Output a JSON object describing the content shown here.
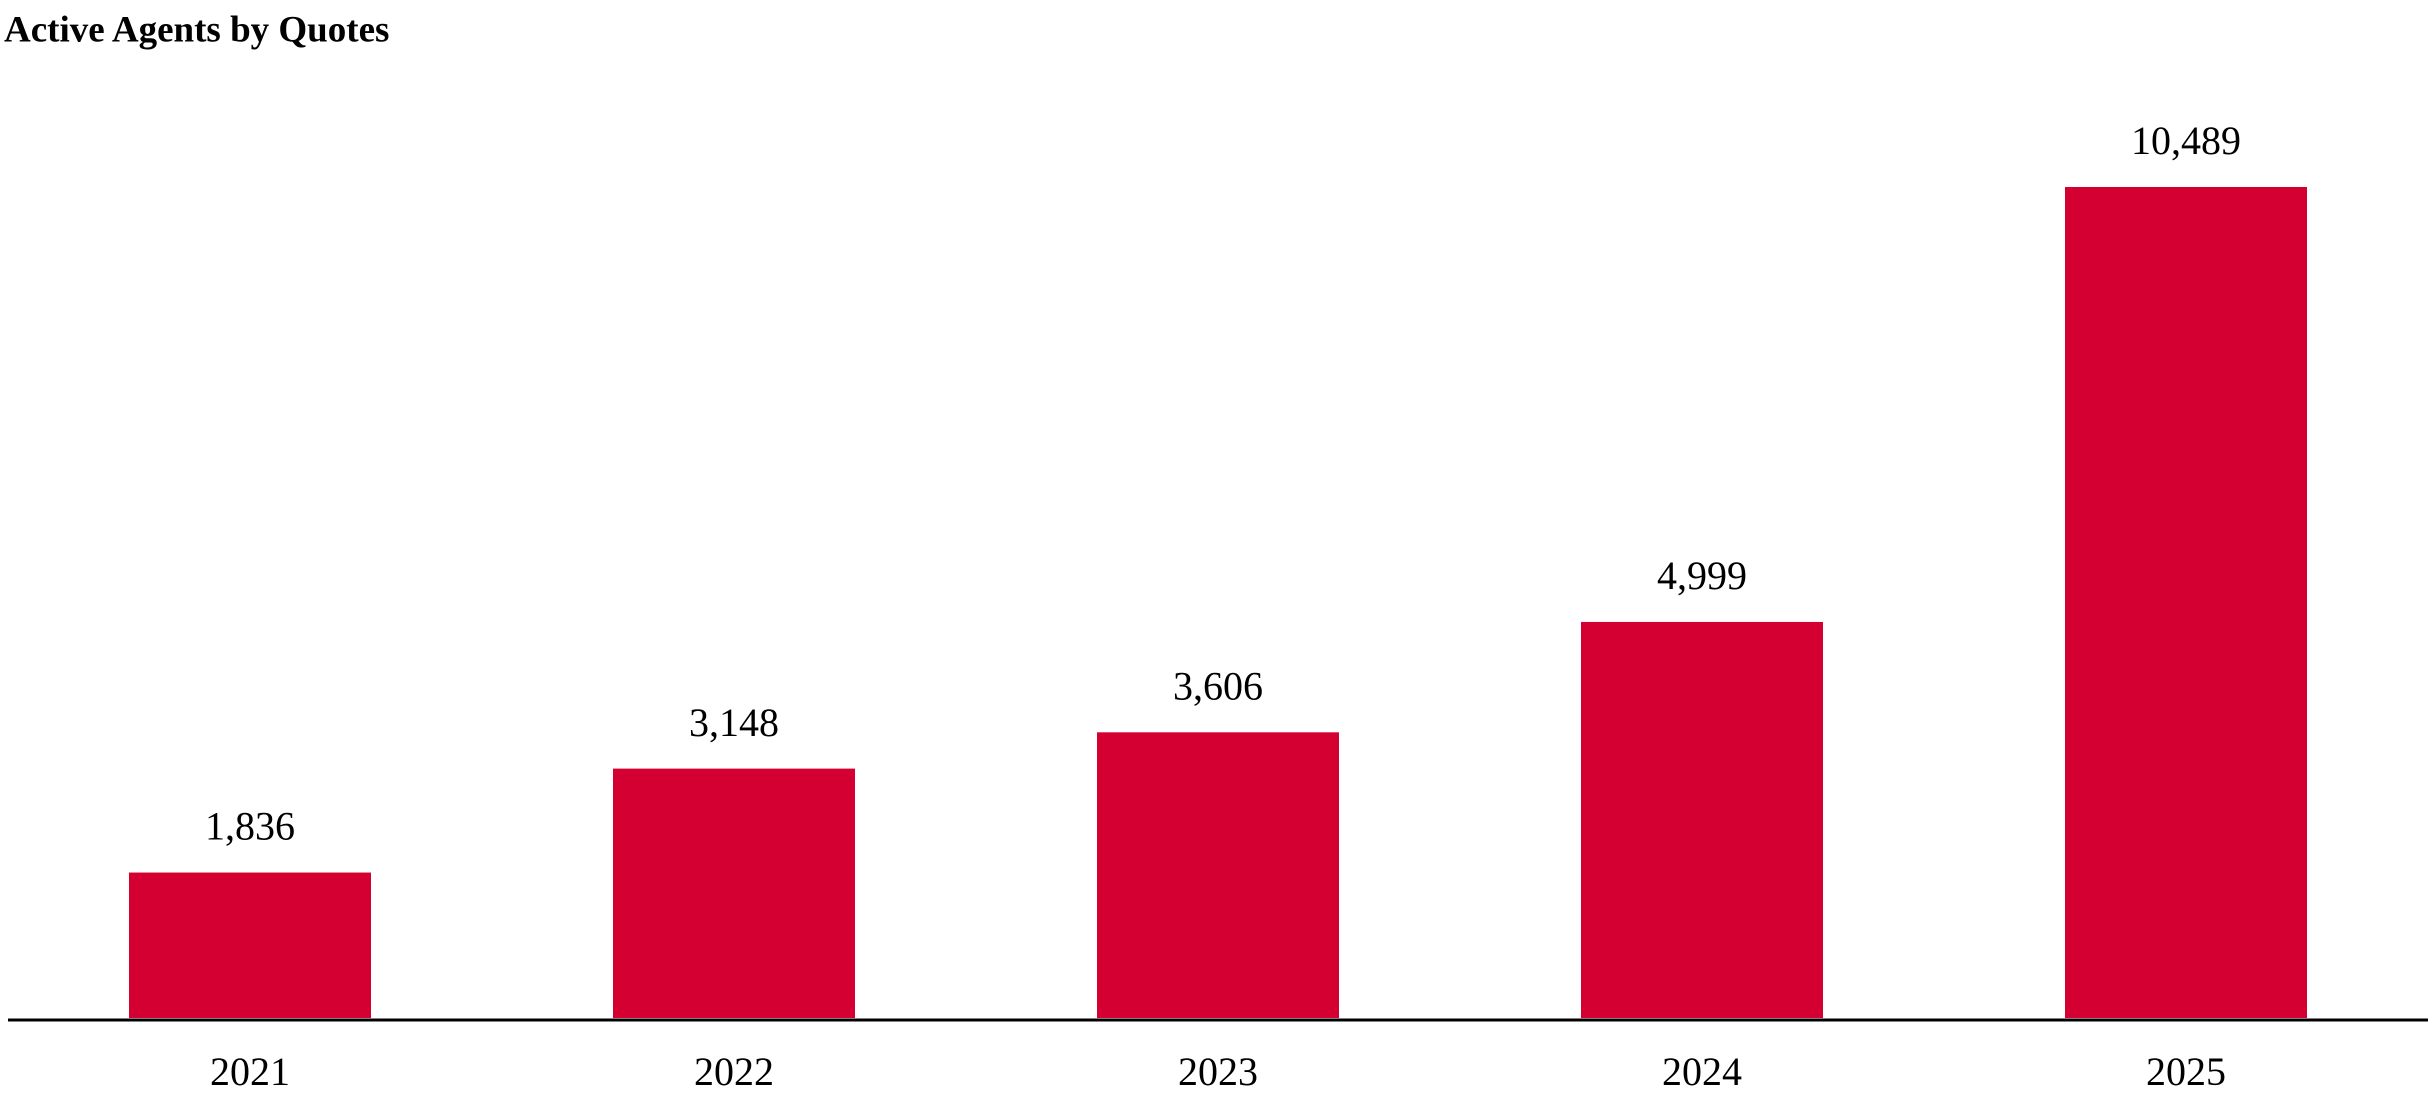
{
  "chart_data": {
    "type": "bar",
    "title": "Active Agents by Quotes",
    "categories": [
      "2021",
      "2022",
      "2023",
      "2024",
      "2025"
    ],
    "values": [
      1836,
      3148,
      3606,
      4999,
      10489
    ],
    "value_labels": [
      "1,836",
      "3,148",
      "3,606",
      "4,999",
      "10,489"
    ],
    "color": "#d50032"
  }
}
